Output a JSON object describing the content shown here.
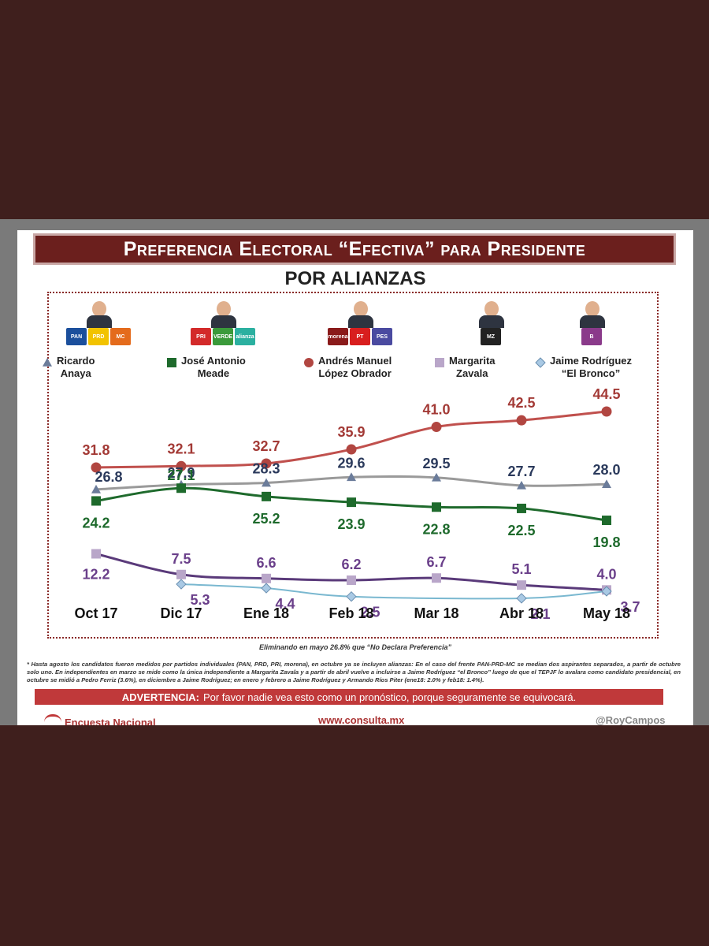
{
  "header": {
    "title": "Preferencia Electoral “Efectiva” para Presidente",
    "subtitle": "POR ALIANZAS"
  },
  "candidates": [
    {
      "name_line1": "Ricardo",
      "name_line2": "Anaya",
      "marker": "triangle",
      "color": "#6b7c9a",
      "logos": [
        "PAN",
        "PRD",
        "MC"
      ]
    },
    {
      "name_line1": "José Antonio",
      "name_line2": "Meade",
      "marker": "square",
      "color": "#1e6a2c",
      "logos": [
        "PRI",
        "VERDE",
        "alianza"
      ]
    },
    {
      "name_line1": "Andrés  Manuel",
      "name_line2": "López  Obrador",
      "marker": "circle",
      "color": "#b14641",
      "logos": [
        "morena",
        "PT",
        "PES"
      ]
    },
    {
      "name_line1": "Margarita",
      "name_line2": "Zavala",
      "marker": "square",
      "color": "#b9a6c9",
      "logos": [
        "MZ"
      ]
    },
    {
      "name_line1": "Jaime Rodríguez",
      "name_line2": "“El Bronco”",
      "marker": "diamond",
      "color": "#a9c9e4",
      "logos": [
        "B"
      ]
    }
  ],
  "chart_data": {
    "type": "line",
    "categories": [
      "Oct 17",
      "Dic 17",
      "Ene 18",
      "Feb 18",
      "Mar 18",
      "Abr 18",
      "May 18"
    ],
    "series": [
      {
        "name": "Andrés Manuel López Obrador",
        "color": "#b14641",
        "label_color": "#a33a36",
        "line_color": "#c0504d",
        "marker": "circle",
        "values": [
          31.8,
          32.1,
          32.7,
          35.9,
          41.0,
          42.5,
          44.5
        ]
      },
      {
        "name": "Ricardo Anaya",
        "color": "#6b7c9a",
        "label_color": "#2b3a5c",
        "line_color": "#9a9a9a",
        "marker": "triangle",
        "values": [
          26.8,
          27.9,
          28.3,
          29.6,
          29.5,
          27.7,
          28.0
        ]
      },
      {
        "name": "José Antonio Meade",
        "color": "#1e6a2c",
        "label_color": "#1e6a2c",
        "line_color": "#1e6a2c",
        "marker": "square",
        "values": [
          24.2,
          27.1,
          25.2,
          23.9,
          22.8,
          22.5,
          19.8
        ]
      },
      {
        "name": "Margarita Zavala",
        "color": "#b9a6c9",
        "label_color": "#6a3f8a",
        "line_color": "#5a3a7a",
        "marker": "square",
        "values": [
          12.2,
          7.5,
          6.6,
          6.2,
          6.7,
          5.1,
          4.0
        ]
      },
      {
        "name": "Jaime Rodríguez “El Bronco”",
        "color": "#a9c9e4",
        "label_color": "#6a3f8a",
        "line_color": "#7ab8d0",
        "marker": "diamond",
        "values": [
          null,
          5.3,
          4.4,
          2.5,
          null,
          2.1,
          3.7
        ]
      }
    ]
  },
  "note": "Eliminando en  mayo 26.8% que “No Declara Preferencia”",
  "footnote": "* Hasta agosto los candidatos fueron medidos por partidos individuales (PAN, PRD, PRI, morena), en octubre ya se incluyen alianzas: En el caso del frente PAN-PRD-MC se median dos aspirantes separados, a partir de octubre solo uno. En independientes en marzo se mide como la única independiente a Margarita Zavala y a partir de abril vuelve a incluirse a Jaime Rodríguez “el Bronco” luego de que el TEPJF lo avalara como candidato presidencial, en octubre se midió a Pedro Ferriz (3.6%), en diciembre a Jaime Rodríguez; en enero y febrero a Jaime Rodríguez y Armando Ríos Piter (ene18: 2.0% y feb18: 1.4%).",
  "warning": {
    "label": "ADVERTENCIA:",
    "text": "Por favor nadie vea esto como un pronóstico, porque seguramente se equivocará."
  },
  "footer": {
    "left": "Encuesta Nacional",
    "center": "www.consulta.mx",
    "right": "@RoyCampos"
  }
}
